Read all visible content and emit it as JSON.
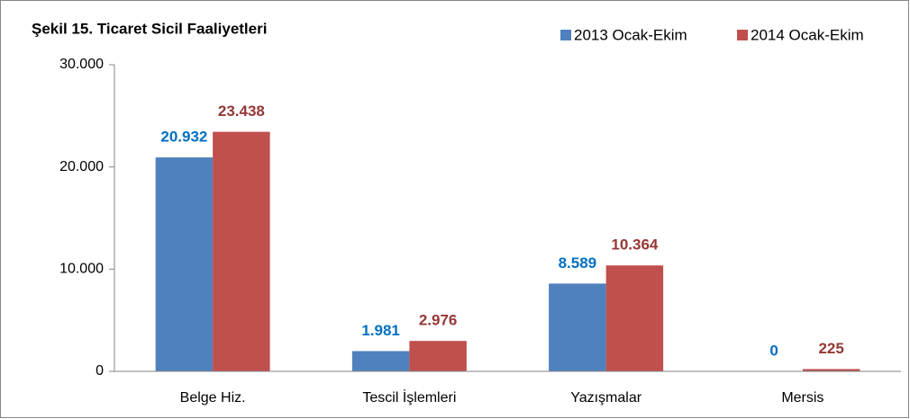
{
  "chart_data": {
    "type": "bar",
    "title": "Şekil 15. Ticaret Sicil Faaliyetleri",
    "categories": [
      "Belge Hiz.",
      "Tescil İşlemleri",
      "Yazışmalar",
      "Mersis"
    ],
    "series": [
      {
        "name": "2013 Ocak-Ekim",
        "color": "#4f81bd",
        "label_color": "#0070c0",
        "values": [
          20932,
          1981,
          8589,
          0
        ],
        "value_labels": [
          "20.932",
          "1.981",
          "8.589",
          "0"
        ]
      },
      {
        "name": "2014 Ocak-Ekim",
        "color": "#c0504d",
        "label_color": "#953735",
        "values": [
          23438,
          2976,
          10364,
          225
        ],
        "value_labels": [
          "23.438",
          "2.976",
          "10.364",
          "225"
        ]
      }
    ],
    "ylim": [
      0,
      30000
    ],
    "yticks": [
      {
        "value": 0,
        "label": "0"
      },
      {
        "value": 10000,
        "label": "10.000"
      },
      {
        "value": 20000,
        "label": "20.000"
      },
      {
        "value": 30000,
        "label": "30.000"
      }
    ],
    "grid": false,
    "legend": "top-right"
  }
}
